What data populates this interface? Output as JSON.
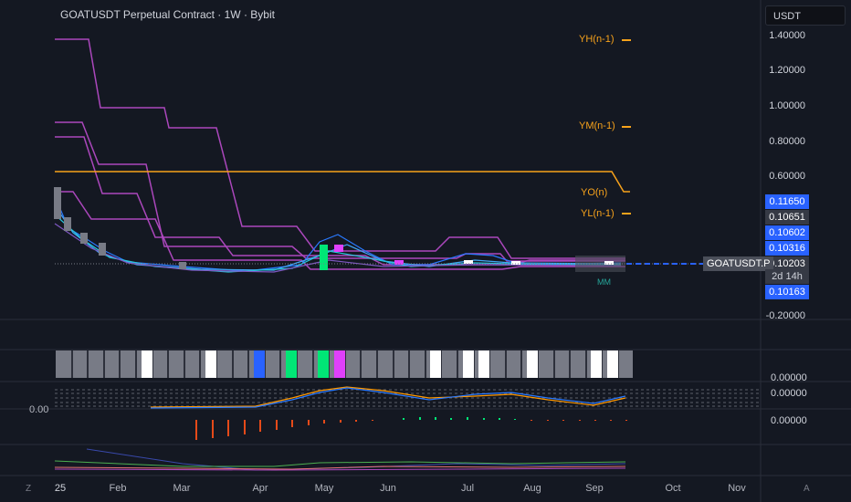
{
  "header": {
    "title": "GOATUSDT Perpetual Contract · 1W · Bybit",
    "currency": "USDT"
  },
  "price_axis": {
    "ticks": [
      "1.40000",
      "1.20000",
      "1.00000",
      "0.80000",
      "0.60000",
      "-0.20000"
    ],
    "tags": [
      {
        "label": "0.11650",
        "style": "blue"
      },
      {
        "label": "0.10651",
        "style": "dark"
      },
      {
        "label": "0.10602",
        "style": "blue"
      },
      {
        "label": "0.10316",
        "style": "blue"
      },
      {
        "label": "0.10203",
        "style": "dark"
      },
      {
        "label": "0.10163",
        "style": "blue"
      }
    ],
    "ticker": "GOATUSDT.P",
    "countdown": "2d 14h"
  },
  "levels": [
    {
      "label": "YH(n-1)"
    },
    {
      "label": "YM(n-1)"
    },
    {
      "label": "YO(n)"
    },
    {
      "label": "YL(n-1)"
    }
  ],
  "chart_overlay": {
    "label": "MM"
  },
  "sub_panels": {
    "panel1_axis": "0.00000",
    "panel2_axis": "0.00000",
    "panel3_axis": "0.00000",
    "left_value": "0.00"
  },
  "time_axis": [
    "25",
    "Feb",
    "Mar",
    "Apr",
    "May",
    "Jun",
    "Jul",
    "Aug",
    "Sep",
    "Oct",
    "Nov"
  ],
  "corner": {
    "left": "Z",
    "right": "A"
  },
  "colors": {
    "background": "#141822",
    "band": "#ab47bc",
    "level": "#f7a21b",
    "accent": "#2962ff",
    "green": "#00e676",
    "magenta": "#e040fb",
    "red": "#f44336"
  }
}
